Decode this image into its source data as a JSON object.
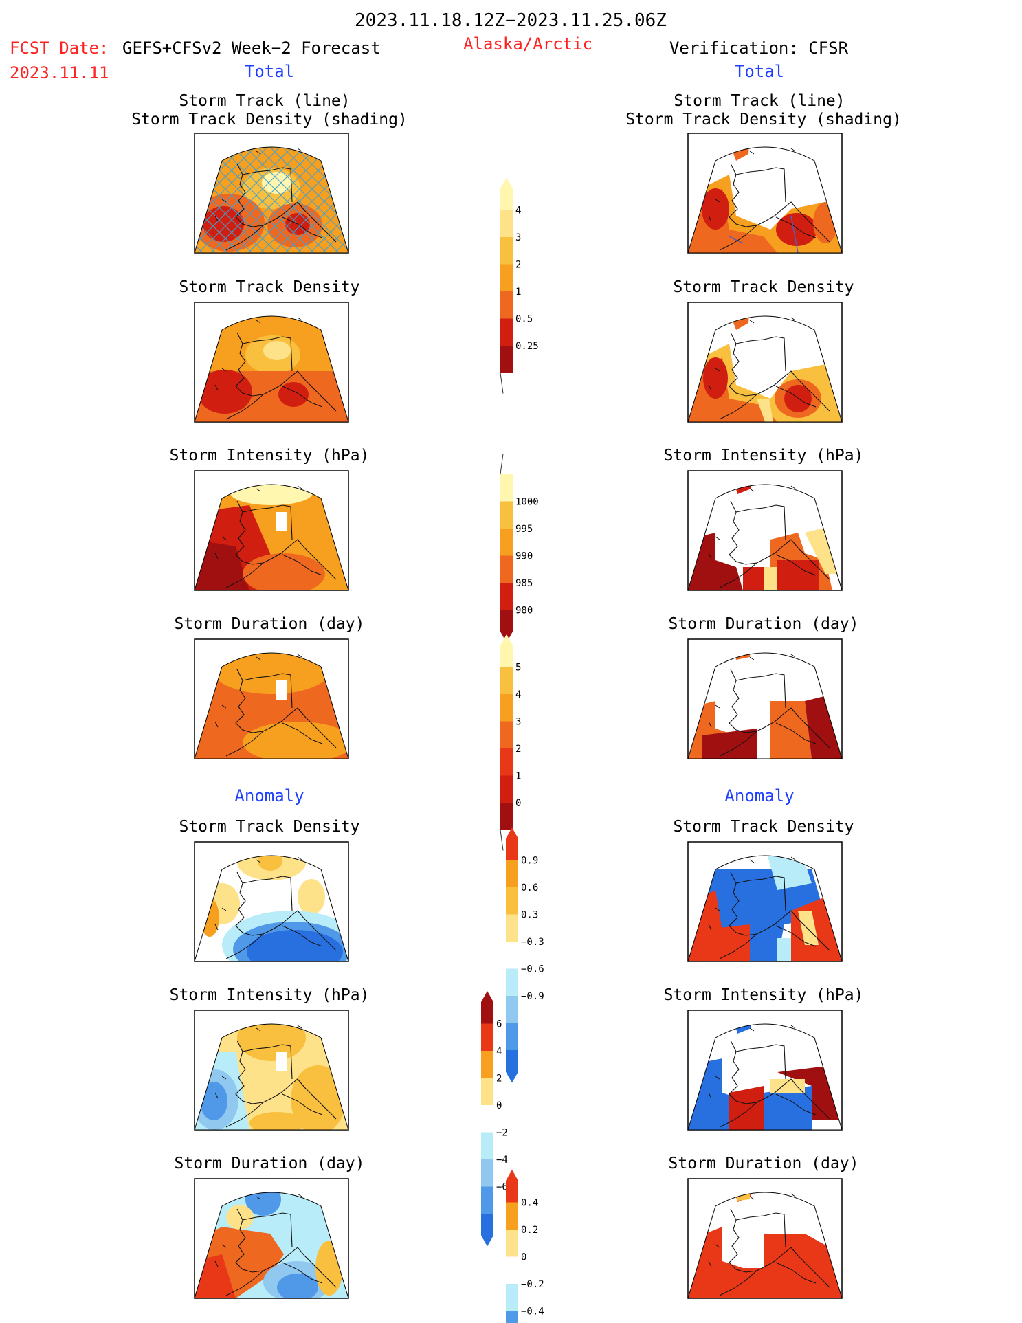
{
  "header": {
    "period": "2023.11.18.12Z−2023.11.25.06Z",
    "fcst_label": "FCST Date:",
    "fcst_product": "GEFS+CFSv2 Week−2 Forecast",
    "fcst_date": "2023.11.11",
    "region": "Alaska/Arctic",
    "verification": "Verification: CFSR"
  },
  "colors": {
    "red_text": "#ff2020",
    "blue_text": "#2040ff",
    "pale_yellow": "#fff7b0",
    "light_yellow": "#fde28a",
    "gold": "#f9c040",
    "orange": "#f7a020",
    "dark_orange": "#ef6820",
    "red_orange": "#e83818",
    "red": "#d01e10",
    "dark_red": "#a01010",
    "light_blue": "#b8ecf8",
    "sky_blue": "#90c8f0",
    "mid_blue": "#5098e8",
    "blue": "#2870e0",
    "track_line": "#40a0d0"
  },
  "sections": {
    "left_total": "Total",
    "right_total": "Total",
    "left_anomaly": "Anomaly",
    "right_anomaly": "Anomaly"
  },
  "panels": {
    "left": [
      {
        "title1": "Storm Track (line)",
        "title2": "Storm Track Density (shading)"
      },
      {
        "title1": "Storm Track Density"
      },
      {
        "title1": "Storm Intensity (hPa)"
      },
      {
        "title1": "Storm Duration (day)"
      },
      {
        "title1": "Storm Track Density"
      },
      {
        "title1": "Storm Intensity (hPa)"
      },
      {
        "title1": "Storm Duration (day)"
      }
    ],
    "right": [
      {
        "title1": "Storm Track (line)",
        "title2": "Storm Track Density (shading)"
      },
      {
        "title1": "Storm Track Density"
      },
      {
        "title1": "Storm Intensity (hPa)"
      },
      {
        "title1": "Storm Duration (day)"
      },
      {
        "title1": "Storm Track Density"
      },
      {
        "title1": "Storm Intensity (hPa)"
      },
      {
        "title1": "Storm Duration (day)"
      }
    ]
  },
  "chart_data": [
    {
      "type": "heatmap",
      "name": "Storm Track Density total colorbar",
      "tick_labels": [
        "0.25",
        "0.5",
        "1",
        "2",
        "3",
        "4"
      ],
      "colors": [
        "#fff7b0",
        "#fde28a",
        "#f9c040",
        "#f7a020",
        "#ef6820",
        "#d01e10",
        "#a01010"
      ],
      "arrow": "top"
    },
    {
      "type": "heatmap",
      "name": "Storm Intensity total colorbar",
      "tick_labels": [
        "1000",
        "995",
        "990",
        "985",
        "980"
      ],
      "colors": [
        "#fff7b0",
        "#f9c040",
        "#f7a020",
        "#ef6820",
        "#d01e10",
        "#a01010"
      ],
      "arrow": "bottom"
    },
    {
      "type": "heatmap",
      "name": "Storm Duration total colorbar",
      "tick_labels": [
        "0",
        "1",
        "2",
        "3",
        "4",
        "5"
      ],
      "colors": [
        "#fff7b0",
        "#f9c040",
        "#f7a020",
        "#ef6820",
        "#e83818",
        "#d01e10",
        "#a01010"
      ],
      "arrow": "top"
    },
    {
      "type": "heatmap",
      "name": "Storm Track Density anomaly colorbar",
      "tick_labels": [
        "0.9",
        "0.6",
        "0.3",
        "−0.3",
        "−0.6",
        "−0.9"
      ],
      "colors": [
        "#e83818",
        "#f7a020",
        "#f9c040",
        "#fde28a",
        "#ffffff",
        "#b8ecf8",
        "#90c8f0",
        "#5098e8",
        "#2870e0"
      ],
      "arrow": "both"
    },
    {
      "type": "heatmap",
      "name": "Storm Intensity anomaly colorbar",
      "tick_labels": [
        "6",
        "4",
        "2",
        "0",
        "−2",
        "−4",
        "−6"
      ],
      "colors": [
        "#a01010",
        "#e83818",
        "#f7a020",
        "#fde28a",
        "#ffffff",
        "#b8ecf8",
        "#90c8f0",
        "#5098e8",
        "#2870e0"
      ],
      "arrow": "both"
    },
    {
      "type": "heatmap",
      "name": "Storm Duration anomaly colorbar",
      "tick_labels": [
        "0.4",
        "0.2",
        "0",
        "−0.2",
        "−0.4"
      ],
      "colors": [
        "#e83818",
        "#f7a020",
        "#fde28a",
        "#ffffff",
        "#b8ecf8",
        "#5098e8",
        "#2870e0"
      ],
      "arrow": "both"
    }
  ]
}
